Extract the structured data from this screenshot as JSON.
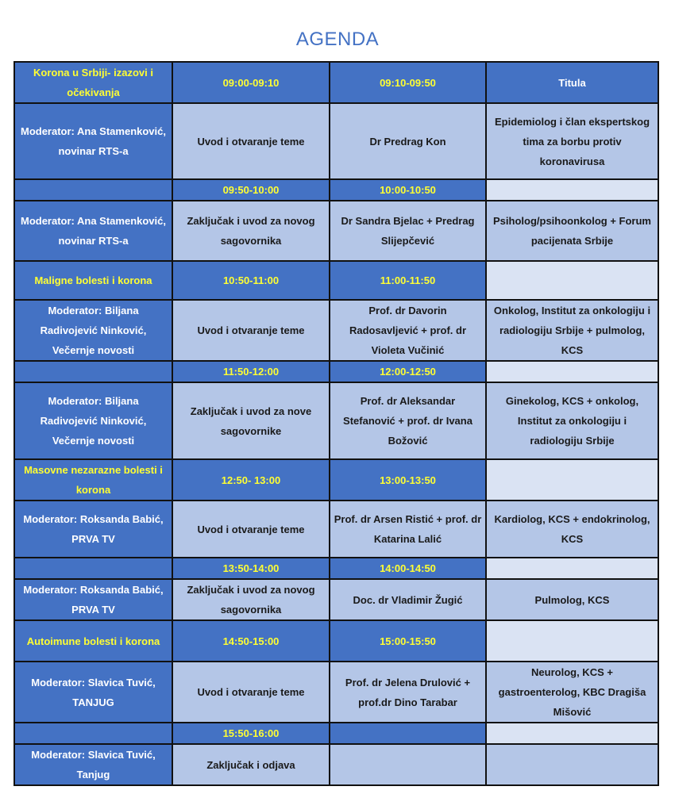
{
  "title": "AGENDA",
  "colors": {
    "dark": "#4472C4",
    "light": "#B4C6E7",
    "pale": "#DAE3F3",
    "highlight_text": "#FFFF33"
  },
  "rows": [
    {
      "type": "section",
      "cells": [
        "Korona u Srbiji- izazovi i očekivanja",
        "09:00-09:10",
        "09:10-09:50",
        "Titula"
      ]
    },
    {
      "type": "content",
      "cells": [
        "Moderator: Ana Stamenković, novinar RTS-a",
        "Uvod i otvaranje teme",
        "Dr Predrag Kon",
        "Epidemiolog i član ekspertskog tima za borbu protiv koronavirusa"
      ]
    },
    {
      "type": "time",
      "cells": [
        "",
        "09:50-10:00",
        "10:00-10:50",
        ""
      ]
    },
    {
      "type": "content",
      "cells": [
        "Moderator: Ana Stamenković, novinar RTS-a",
        "Zaključak i uvod za novog sagovornika",
        "Dr Sandra Bjelac + Predrag Slijepčević",
        "Psiholog/psihoonkolog + Forum pacijenata Srbije"
      ]
    },
    {
      "type": "section",
      "cells": [
        "Maligne bolesti i korona",
        "10:50-11:00",
        "11:00-11:50",
        ""
      ]
    },
    {
      "type": "content",
      "cells": [
        "Moderator: Biljana Radivojević Ninković, Večernje novosti",
        "Uvod i otvaranje teme",
        "Prof. dr Davorin Radosavljević + prof. dr Violeta Vučinić",
        "Onkolog, Institut za onkologiju i radiologiju Srbije + pulmolog, KCS"
      ]
    },
    {
      "type": "time",
      "cells": [
        "",
        "11:50-12:00",
        "12:00-12:50",
        ""
      ]
    },
    {
      "type": "content",
      "cells": [
        "Moderator: Biljana Radivojević Ninković, Večernje novosti",
        "Zaključak i uvod za nove sagovornike",
        "Prof. dr Aleksandar Stefanović + prof. dr Ivana Božović",
        "Ginekolog, KCS + onkolog, Institut za onkologiju i radiologiju Srbije"
      ]
    },
    {
      "type": "section",
      "cells": [
        "Masovne nezarazne bolesti i korona",
        "12:50- 13:00",
        "13:00-13:50",
        ""
      ]
    },
    {
      "type": "content",
      "cells": [
        "Moderator: Roksanda Babić, PRVA TV",
        "Uvod i otvaranje teme",
        "Prof. dr Arsen Ristić + prof. dr Katarina Lalić",
        "Kardiolog, KCS + endokrinolog, KCS"
      ]
    },
    {
      "type": "time",
      "cells": [
        "",
        "13:50-14:00",
        "14:00-14:50",
        ""
      ]
    },
    {
      "type": "content",
      "cells": [
        "Moderator: Roksanda Babić, PRVA TV",
        "Zaključak i uvod za novog sagovornika",
        "Doc. dr Vladimir Žugić",
        "Pulmolog, KCS"
      ]
    },
    {
      "type": "section",
      "cells": [
        "Autoimune bolesti i korona",
        "14:50-15:00",
        "15:00-15:50",
        ""
      ]
    },
    {
      "type": "content",
      "cells": [
        "Moderator: Slavica Tuvić, TANJUG",
        "Uvod i otvaranje teme",
        "Prof. dr Jelena Drulović + prof.dr Dino Tarabar",
        "Neurolog, KCS + gastroenterolog, KBC Dragiša Mišović"
      ]
    },
    {
      "type": "time",
      "cells": [
        "",
        "15:50-16:00",
        "",
        ""
      ]
    },
    {
      "type": "content",
      "cells": [
        "Moderator: Slavica Tuvić, Tanjug",
        "Zaključak i odjava",
        "",
        ""
      ]
    }
  ]
}
